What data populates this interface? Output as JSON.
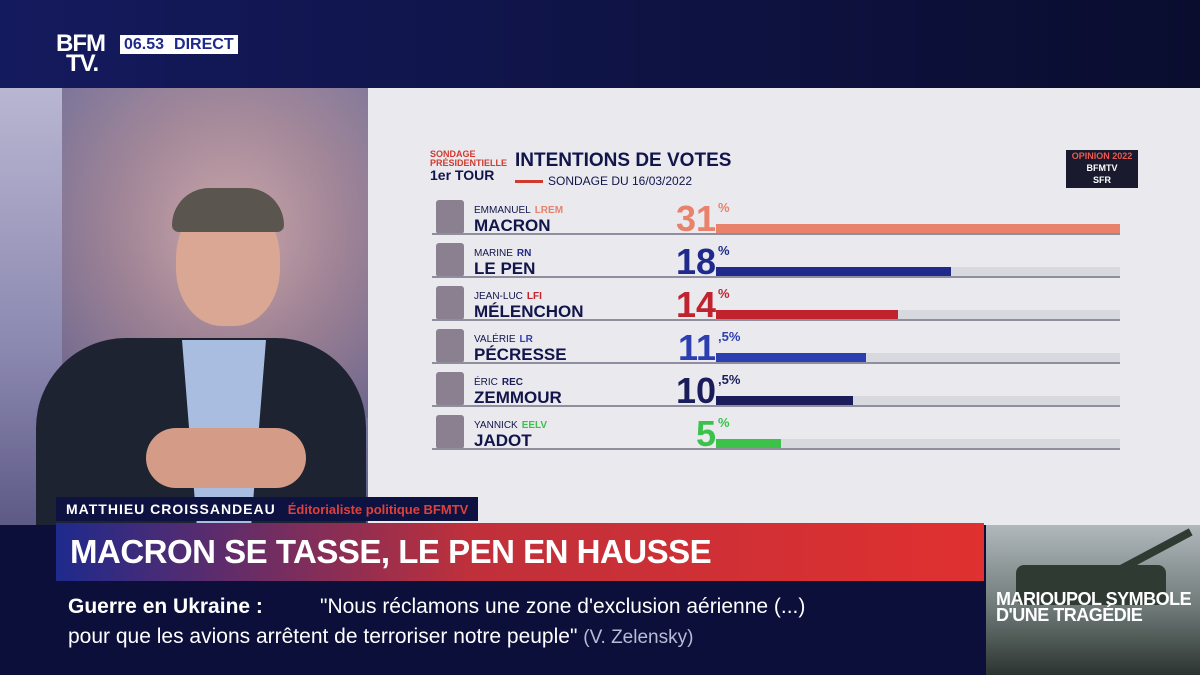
{
  "header": {
    "logo_line1": "BFM",
    "logo_line2": "TV.",
    "clock": "06.53",
    "live_label": "DIRECT"
  },
  "poll": {
    "survey_label": "SONDAGE PRÉSIDENTIELLE",
    "round": "1er TOUR",
    "title": "INTENTIONS DE VOTES",
    "date": "SONDAGE DU 16/03/2022",
    "badge_line1": "OPINION 2022",
    "badge_line2": "BFMTV",
    "badge_line3": "SFR",
    "candidates": [
      {
        "first": "EMMANUEL",
        "party": "LREM",
        "last": "MACRON",
        "int": "31",
        "dec": "%",
        "value": 31,
        "color": "#e8826a",
        "numcolor": "#e8826a"
      },
      {
        "first": "MARINE",
        "party": "RN",
        "last": "LE PEN",
        "int": "18",
        "dec": "%",
        "value": 18,
        "color": "#1f2a8c",
        "numcolor": "#1f2a8c"
      },
      {
        "first": "JEAN-LUC",
        "party": "LFI",
        "last": "MÉLENCHON",
        "int": "14",
        "dec": "%",
        "value": 14,
        "color": "#c0232d",
        "numcolor": "#c0232d"
      },
      {
        "first": "VALÉRIE",
        "party": "LR",
        "last": "PÉCRESSE",
        "int": "11",
        "dec": ",5%",
        "value": 11.5,
        "color": "#2d3fb0",
        "numcolor": "#2d3fb0"
      },
      {
        "first": "ÉRIC",
        "party": "REC",
        "last": "ZEMMOUR",
        "int": "10",
        "dec": ",5%",
        "value": 10.5,
        "color": "#1a1d5a",
        "numcolor": "#1a1d5a"
      },
      {
        "first": "YANNICK",
        "party": "EELV",
        "last": "JADOT",
        "int": "5",
        "dec": "%",
        "value": 5,
        "color": "#3cc24a",
        "numcolor": "#3cc24a"
      }
    ]
  },
  "speaker": {
    "name": "MATTHIEU CROISSANDEAU",
    "role": "Éditorialiste politique BFMTV"
  },
  "headline": "MACRON SE TASSE, LE PEN EN HAUSSE",
  "ticker": {
    "topic": "Guerre en Ukraine  :",
    "quote_line1": "\"Nous réclamons une zone d'exclusion aérienne (...)",
    "quote_line2": "pour que les avions arrêtent de terroriser notre peuple\"",
    "attribution": "(V. Zelensky)"
  },
  "thumbnail": {
    "caption": "MARIOUPOL SYMBOLE D'UNE TRAGÉDIE"
  }
}
